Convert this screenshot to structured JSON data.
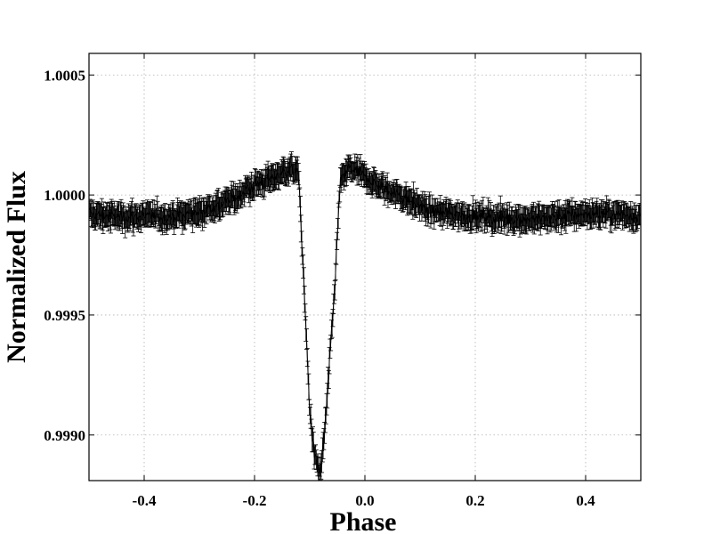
{
  "chart_data": {
    "type": "scatter",
    "title": "",
    "xlabel": "Phase",
    "ylabel": "Normalized Flux",
    "xlim": [
      -0.5,
      0.5
    ],
    "ylim": [
      0.99881,
      1.00059
    ],
    "x_ticks": [
      -0.4,
      -0.2,
      0.0,
      0.2,
      0.4
    ],
    "x_tick_labels": [
      "-0.4",
      "-0.2",
      "0.0",
      "0.2",
      "0.4"
    ],
    "y_ticks": [
      0.999,
      0.9995,
      1.0,
      1.0005
    ],
    "y_tick_labels": [
      "0.9990",
      "0.9995",
      "1.0000",
      "1.0005"
    ],
    "grid": true,
    "grid_style": "dotted",
    "error_bars": true,
    "series_color": "#000000",
    "grid_color": "#b0b0b0",
    "n_points": 800,
    "series": [
      {
        "profile": [
          [
            -0.5,
            0.99992
          ],
          [
            -0.45,
            0.99991
          ],
          [
            -0.4,
            0.99991
          ],
          [
            -0.35,
            0.99991
          ],
          [
            -0.3,
            0.99993
          ],
          [
            -0.25,
            0.99997
          ],
          [
            -0.2,
            1.00004
          ],
          [
            -0.16,
            1.00008
          ],
          [
            -0.135,
            1.00011
          ],
          [
            -0.12,
            1.00009
          ],
          [
            -0.11,
            0.9996
          ],
          [
            -0.1,
            0.9991
          ],
          [
            -0.09,
            0.99889
          ],
          [
            -0.08,
            0.99884
          ],
          [
            -0.07,
            0.9991
          ],
          [
            -0.055,
            0.9996
          ],
          [
            -0.045,
            1.00005
          ],
          [
            -0.03,
            1.00011
          ],
          [
            -0.01,
            1.00009
          ],
          [
            0.03,
            1.00003
          ],
          [
            0.08,
            0.99998
          ],
          [
            0.12,
            0.99993
          ],
          [
            0.2,
            0.99991
          ],
          [
            0.3,
            0.9999
          ],
          [
            0.35,
            0.99991
          ],
          [
            0.4,
            0.99992
          ],
          [
            0.45,
            0.99992
          ],
          [
            0.5,
            0.99991
          ]
        ],
        "scatter": 4e-05,
        "error": 4e-05
      }
    ]
  }
}
